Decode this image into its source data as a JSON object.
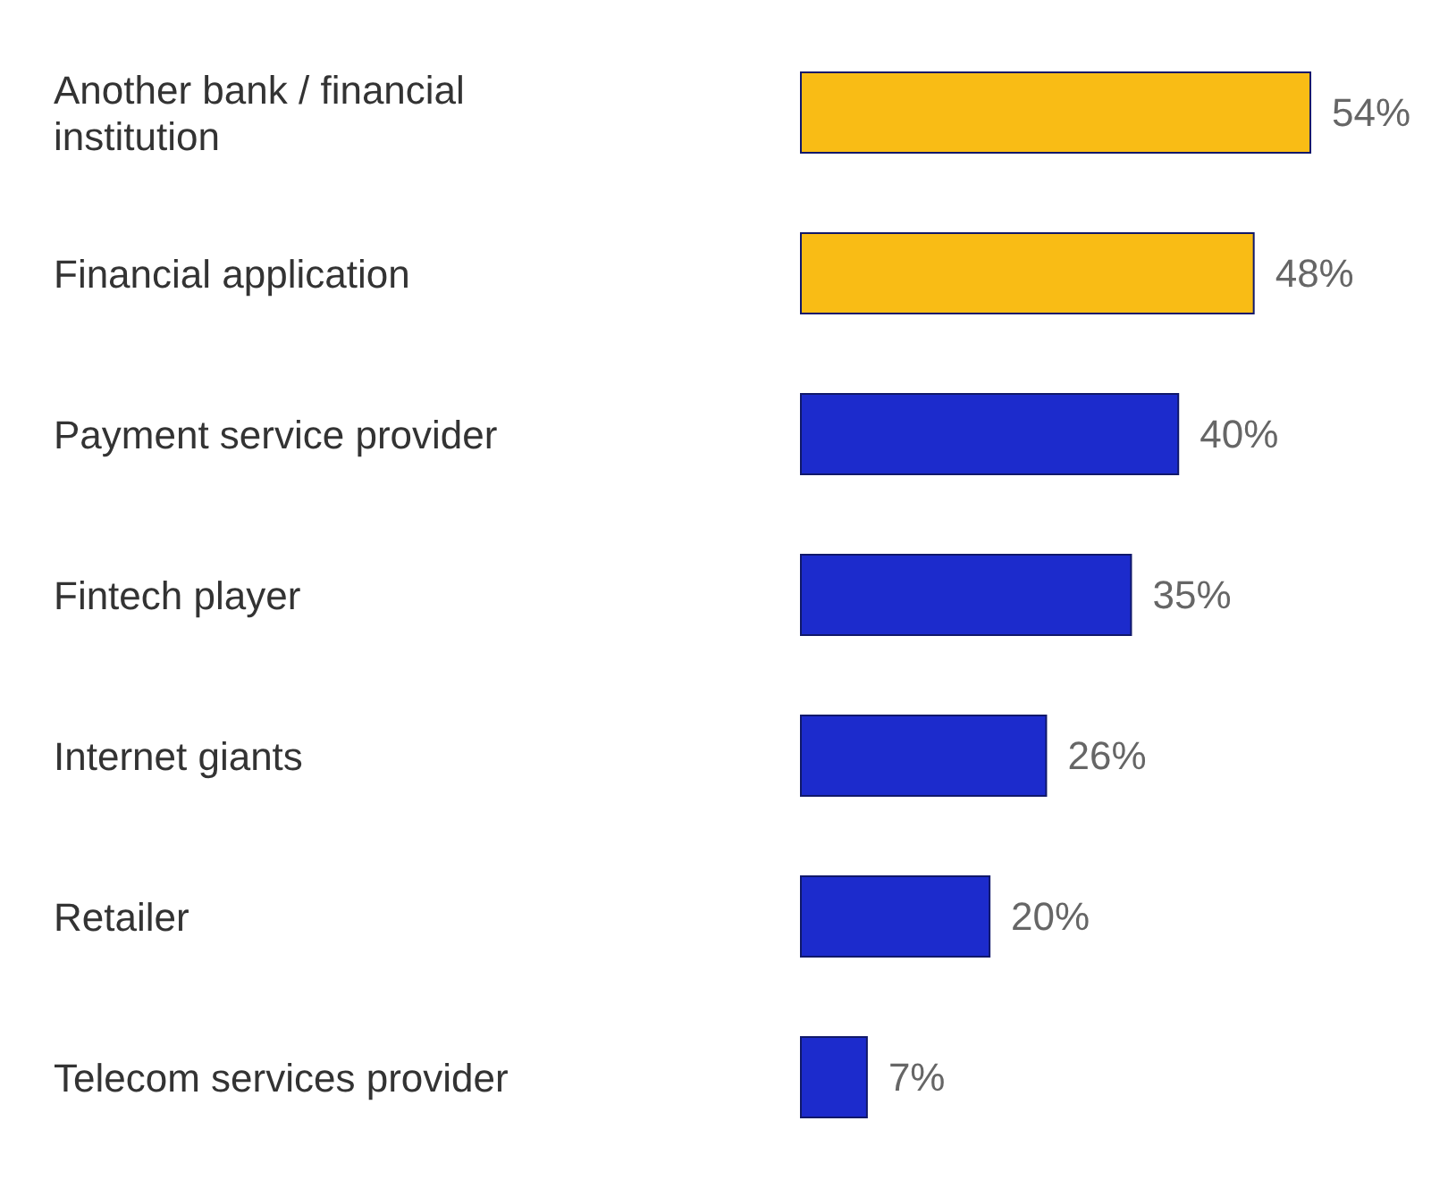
{
  "chart_data": {
    "type": "bar",
    "orientation": "horizontal",
    "categories": [
      "Another bank / financial institution",
      "Financial application",
      "Payment service provider",
      "Fintech player",
      "Internet giants",
      "Retailer",
      "Telecom services provider"
    ],
    "values": [
      54,
      48,
      40,
      35,
      26,
      20,
      7
    ],
    "colors": [
      "#f9bc15",
      "#f9bc15",
      "#1c2bcc",
      "#1c2bcc",
      "#1c2bcc",
      "#1c2bcc",
      "#1c2bcc"
    ],
    "value_labels": [
      "54%",
      "48%",
      "40%",
      "35%",
      "26%",
      "20%",
      "7%"
    ]
  }
}
